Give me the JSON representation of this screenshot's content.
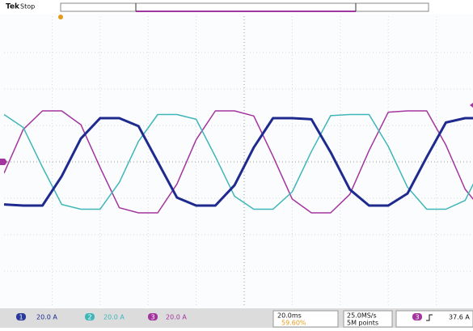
{
  "ui": {
    "brand": "Tek",
    "state": "Stop",
    "ch1_num": "1",
    "ch1_scale": "20.0 A",
    "ch2_num": "2",
    "ch2_scale": "20.0 A",
    "ch3_num": "3",
    "ch3_scale": "20.0 A",
    "timebase": "20.0ms",
    "position": "59.60%",
    "sample_rate": "25.0MS/s",
    "record_length": "5M points",
    "trig_num": "3",
    "trig_level": "37.6 A"
  },
  "chart_data": {
    "type": "line",
    "xlim": [
      -100,
      100
    ],
    "ylim": [
      -80,
      80
    ],
    "x": [
      -100,
      -92,
      -84,
      -76,
      -68,
      -60,
      -52,
      -44,
      -36,
      -28,
      -20,
      -12,
      -4,
      4,
      12,
      20,
      28,
      36,
      44,
      52,
      60,
      68,
      76,
      84,
      92,
      100
    ],
    "series": [
      {
        "name": "3",
        "color": "#a3359e",
        "values": [
          -6.2,
          17.8,
          28,
          28,
          20.4,
          -3.1,
          -25.2,
          -28,
          -28,
          -12.2,
          12.2,
          28,
          28,
          25.2,
          3.1,
          -20.4,
          -28,
          -28,
          -17.8,
          6.2,
          27.3,
          28,
          28,
          9.2,
          -15,
          -28
        ]
      },
      {
        "name": "2",
        "color": "#3fb6b8",
        "values": [
          26,
          18.9,
          -2.9,
          -23.4,
          -26,
          -26,
          -11.3,
          11.3,
          26,
          26,
          23.4,
          2.9,
          -18.9,
          -26,
          -26,
          -16.5,
          5.7,
          25.4,
          26,
          26,
          8.5,
          -13.9,
          -26,
          -26,
          -21.2,
          0
        ]
      },
      {
        "name": "1",
        "color": "#1f2a8f",
        "values": [
          -23.4,
          -24,
          -24,
          -7.9,
          12.8,
          24,
          24,
          19.6,
          0,
          -19.6,
          -24,
          -24,
          -12.8,
          7.9,
          24,
          24,
          23.4,
          5.3,
          -15.2,
          -24,
          -24,
          -17.4,
          2.6,
          21.6,
          24,
          24
        ]
      }
    ]
  }
}
